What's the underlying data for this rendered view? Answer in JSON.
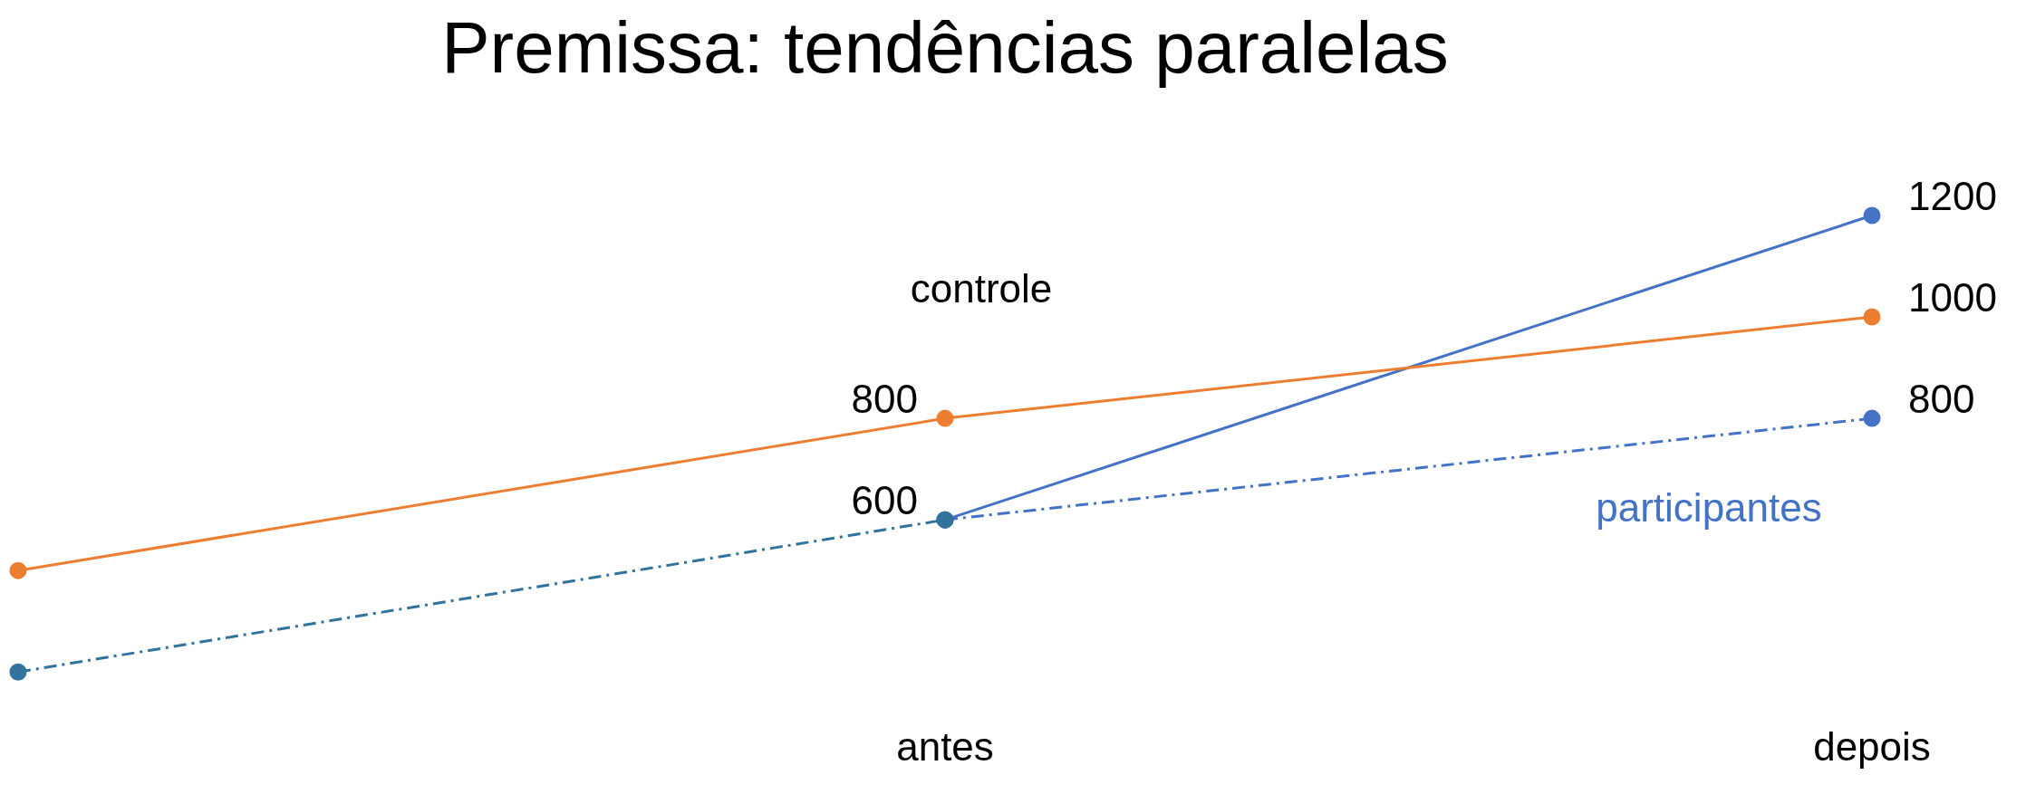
{
  "chart_data": {
    "type": "line",
    "title": "Premissa: tendências paralelas",
    "categories": [
      null,
      "antes",
      "depois"
    ],
    "marker": "circle",
    "grid": false,
    "legend": false,
    "tick_labels": "x",
    "series": [
      {
        "name": "controle",
        "color": "#ed7d31",
        "values": [
          500,
          800,
          1000
        ],
        "value_labels": [
          null,
          "800",
          "1000"
        ]
      },
      {
        "color": "#31739c",
        "values": [
          300,
          600,
          null
        ],
        "value_labels": [
          null,
          "600",
          null
        ],
        "line_style": "dashed"
      },
      {
        "name": "participantes",
        "color": "#4472c4",
        "values": [
          null,
          600,
          1200
        ],
        "value_labels": [
          null,
          null,
          "1200"
        ]
      },
      {
        "color": "#4472c4",
        "values": [
          null,
          600,
          800
        ],
        "value_labels": [
          null,
          null,
          "800"
        ],
        "line_style": "dashed"
      }
    ]
  }
}
